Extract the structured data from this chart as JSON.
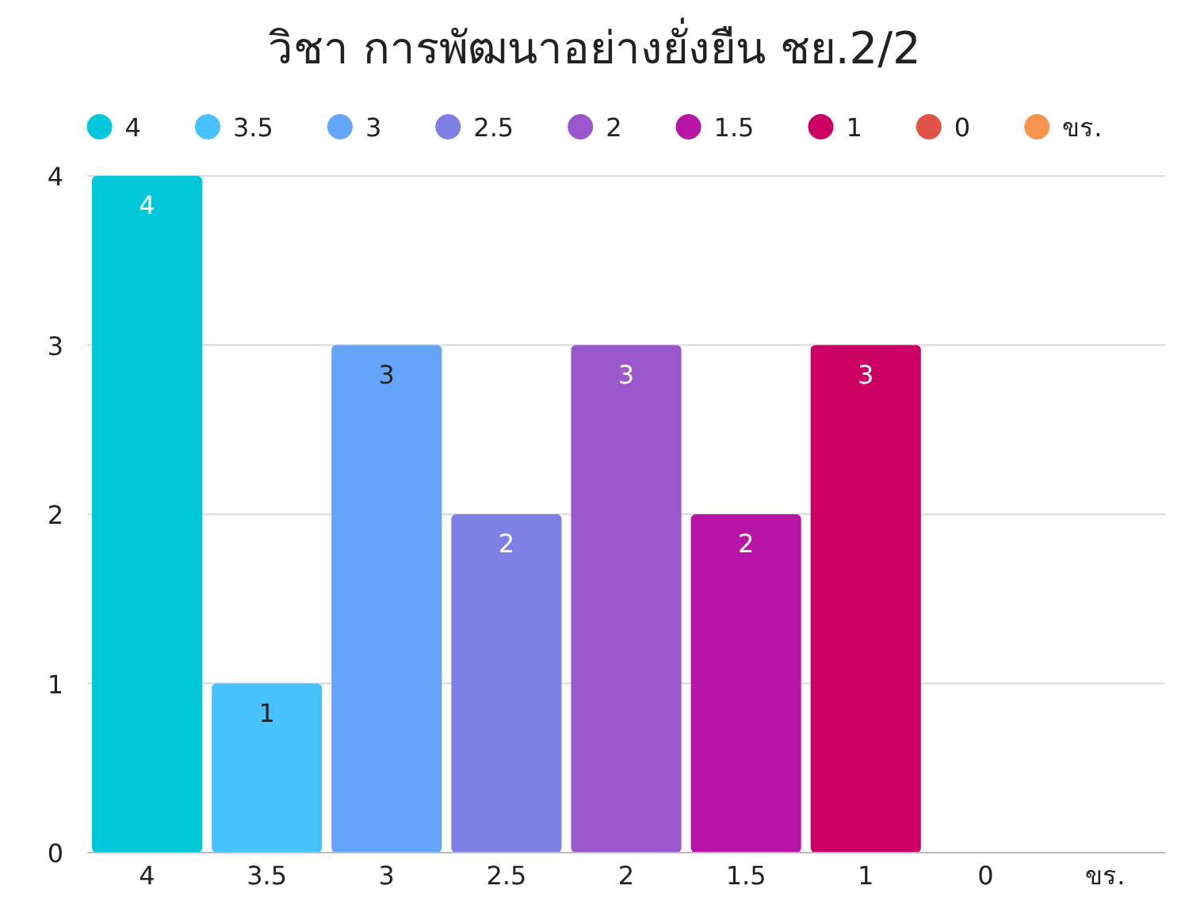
{
  "chart_data": {
    "type": "bar",
    "title": "วิชา การพัฒนาอย่างยั่งยืน ชย.2/2",
    "categories": [
      "4",
      "3.5",
      "3",
      "2.5",
      "2",
      "1.5",
      "1",
      "0",
      "ขร."
    ],
    "series": [
      {
        "name": "4",
        "color": "#00c8da",
        "values": [
          4,
          null,
          null,
          null,
          null,
          null,
          null,
          null,
          null
        ],
        "value_labels": [
          "4",
          null,
          null,
          null,
          null,
          null,
          null,
          null,
          null
        ]
      },
      {
        "name": "3.5",
        "color": "#48c2fe",
        "values": [
          null,
          1,
          null,
          null,
          null,
          null,
          null,
          null,
          null
        ],
        "value_labels": [
          null,
          "1",
          null,
          null,
          null,
          null,
          null,
          null,
          null
        ]
      },
      {
        "name": "3",
        "color": "#64a5fa",
        "values": [
          null,
          null,
          3,
          null,
          null,
          null,
          null,
          null,
          null
        ],
        "value_labels": [
          null,
          null,
          "3",
          null,
          null,
          null,
          null,
          null,
          null
        ]
      },
      {
        "name": "2.5",
        "color": "#7f80e6",
        "values": [
          null,
          null,
          null,
          2,
          null,
          null,
          null,
          null,
          null
        ],
        "value_labels": [
          null,
          null,
          null,
          "2",
          null,
          null,
          null,
          null,
          null
        ]
      },
      {
        "name": "2",
        "color": "#9a58cc",
        "values": [
          null,
          null,
          null,
          null,
          3,
          null,
          null,
          null,
          null
        ],
        "value_labels": [
          null,
          null,
          null,
          null,
          "3",
          null,
          null,
          null,
          null
        ]
      },
      {
        "name": "1.5",
        "color": "#b815a6",
        "values": [
          null,
          null,
          null,
          null,
          null,
          2,
          null,
          null,
          null
        ],
        "value_labels": [
          null,
          null,
          null,
          null,
          null,
          "2",
          null,
          null,
          null
        ]
      },
      {
        "name": "1",
        "color": "#cc0062",
        "values": [
          null,
          null,
          null,
          null,
          null,
          null,
          3,
          null,
          null
        ],
        "value_labels": [
          null,
          null,
          null,
          null,
          null,
          null,
          "3",
          null,
          null
        ]
      },
      {
        "name": "0",
        "color": "#e05248",
        "values": [
          null,
          null,
          null,
          null,
          null,
          null,
          null,
          0,
          null
        ]
      },
      {
        "name": "ขร.",
        "color": "#f79550",
        "values": [
          null,
          null,
          null,
          null,
          null,
          null,
          null,
          null,
          0
        ]
      }
    ],
    "ylim": [
      0,
      4
    ],
    "yticks": [
      0,
      1,
      2,
      3,
      4
    ],
    "grid": "y",
    "legend": "top"
  }
}
